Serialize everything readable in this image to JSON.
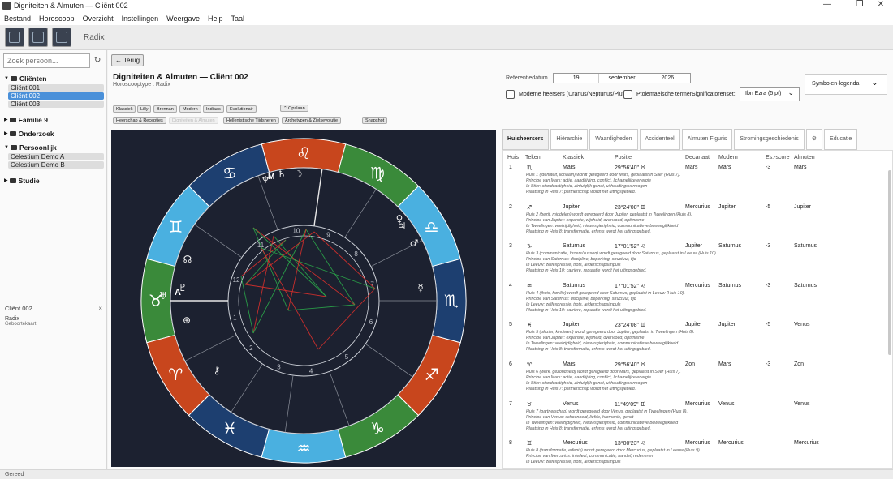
{
  "window": {
    "title": "Digniteiten & Almuten — Cliënt 002",
    "min": "—",
    "max": "❐",
    "close": "✕"
  },
  "menu": [
    "Bestand",
    "Horoscoop",
    "Overzicht",
    "Instellingen",
    "Weergave",
    "Help",
    "Taal"
  ],
  "toolbar": {
    "radix_label": "Radix"
  },
  "sidebar": {
    "search_placeholder": "Zoek persoon...",
    "refresh": "↻",
    "groups": [
      {
        "label": "Cliënten",
        "expanded": true,
        "items": [
          "Cliënt 001",
          "Cliënt 002",
          "Cliënt 003"
        ],
        "selected": 1
      },
      {
        "label": "Familie 9",
        "expanded": false,
        "items": []
      },
      {
        "label": "Onderzoek",
        "expanded": false,
        "items": []
      },
      {
        "label": "Persoonlijk",
        "expanded": true,
        "items": [
          "Celestium Demo A",
          "Celestium Demo B"
        ]
      },
      {
        "label": "Studie",
        "expanded": false,
        "items": []
      }
    ],
    "info": {
      "title": "Cliënt 002",
      "close": "×",
      "line1": "Radix",
      "line2": "Geboortekaart"
    }
  },
  "main": {
    "back": "← Terug",
    "title": "Digniteiten & Almuten — Cliënt 002",
    "subtitle": "Horoscooptype :  Radix",
    "ref_label": "Referentiedatum",
    "date": {
      "day": "19",
      "month": "september",
      "year": "2026"
    },
    "modern_label": "Moderne heersers (Uranus/Neptunus/Pluto)",
    "ptol_label": "Ptolemaeische termen",
    "sig_label": "Significatorenset:",
    "sig_value": "Ibn Ezra (5 pt)",
    "legend_label": "Symbolen-legenda",
    "chips_row1": [
      "Klassiek",
      "Lilly",
      "Brennan",
      "Modern",
      "Indiaas",
      "Evolutionair"
    ],
    "save": "⌃ Opslaan",
    "chips_row2": [
      "Heerschap & Recepties",
      "Digniteiten & Almuten",
      "Hellenistische Tijdsheren",
      "Archetypen & Zielsevolutie"
    ],
    "snapshot": "Snapshot"
  },
  "tabs": [
    "Huisheersers",
    "Hiërarchie",
    "Waardigheden",
    "Accidenteel",
    "Almuten Figuris",
    "Stromingsgeschiedenis",
    "⚙",
    "Educatie"
  ],
  "table": {
    "headers": [
      "Huis",
      "Teken",
      "Klassiek",
      "Positie",
      "Decanaat",
      "Modern",
      "Es.-score",
      "Almuten"
    ],
    "rows": [
      {
        "huis": "1",
        "teken": "♏",
        "klassiek": "Mars",
        "positie": "29°56'40\" ♉",
        "decanaat": "Mars",
        "modern": "Mars",
        "score": "-3",
        "almuten": "Mars",
        "desc": [
          "Huis 1 (identiteit, lichaam) wordt geregeerd door Mars, geplaatst in Stier (Huis 7).",
          "Principe van Mars: actie, aandrijving, conflict, lichamelijke energie",
          "In Stier: standvastigheid, zintuiglijk genot, uithoudingsvermogen",
          "Plaatsing in Huis 7: partnerschap wordt het uitingsgebied."
        ]
      },
      {
        "huis": "2",
        "teken": "♐",
        "klassiek": "Jupiter",
        "positie": "23°24'08\" ♊",
        "decanaat": "Mercurius",
        "modern": "Jupiter",
        "score": "-5",
        "almuten": "Jupiter",
        "desc": [
          "Huis 2 (bezit, middelen) wordt geregeerd door Jupiter, geplaatst in Tweelingen (Huis 8).",
          "Principe van Jupiter: expansie, wijsheid, overvloed, optimisme",
          "In Tweelingen: veelzijdigheid, nieuwsgierigheid, communicatieve beweeglijkheid",
          "Plaatsing in Huis 8: transformatie, erfenis wordt het uitingsgebied."
        ]
      },
      {
        "huis": "3",
        "teken": "♑",
        "klassiek": "Saturnus",
        "positie": "17°01'52\" ♌",
        "decanaat": "Jupiter",
        "modern": "Saturnus",
        "score": "-3",
        "almuten": "Saturnus",
        "desc": [
          "Huis 3 (communicatie, broers/zussen) wordt geregeerd door Saturnus, geplaatst in Leeuw (Huis 10).",
          "Principe van Saturnus: discipline, beperking, structuur, tijd",
          "In Leeuw: zelfexpressie, trots, leiderschapsimpuls",
          "Plaatsing in Huis 10: carrière, reputatie wordt het uitingsgebied."
        ]
      },
      {
        "huis": "4",
        "teken": "♒",
        "klassiek": "Saturnus",
        "positie": "17°01'52\" ♌",
        "decanaat": "Mercurius",
        "modern": "Saturnus",
        "score": "-3",
        "almuten": "Saturnus",
        "desc": [
          "Huis 4 (thuis, familie) wordt geregeerd door Saturnus, geplaatst in Leeuw (Huis 10).",
          "Principe van Saturnus: discipline, beperking, structuur, tijd",
          "In Leeuw: zelfexpressie, trots, leiderschapsimpuls",
          "Plaatsing in Huis 10: carrière, reputatie wordt het uitingsgebied."
        ]
      },
      {
        "huis": "5",
        "teken": "♓",
        "klassiek": "Jupiter",
        "positie": "23°24'08\" ♊",
        "decanaat": "Jupiter",
        "modern": "Jupiter",
        "score": "-5",
        "almuten": "Venus",
        "desc": [
          "Huis 5 (plezier, kinderen) wordt geregeerd door Jupiter, geplaatst in Tweelingen (Huis 8).",
          "Principe van Jupiter: expansie, wijsheid, overvloed, optimisme",
          "In Tweelingen: veelzijdigheid, nieuwsgierigheid, communicatieve beweeglijkheid",
          "Plaatsing in Huis 8: transformatie, erfenis wordt het uitingsgebied."
        ]
      },
      {
        "huis": "6",
        "teken": "♈",
        "klassiek": "Mars",
        "positie": "29°56'40\" ♉",
        "decanaat": "Zon",
        "modern": "Mars",
        "score": "-3",
        "almuten": "Zon",
        "desc": [
          "Huis 6 (werk, gezondheid) wordt geregeerd door Mars, geplaatst in Stier (Huis 7).",
          "Principe van Mars: actie, aandrijving, conflict, lichamelijke energie",
          "In Stier: standvastigheid, zintuiglijk genot, uithoudingsvermogen",
          "Plaatsing in Huis 7: partnerschap wordt het uitingsgebied."
        ]
      },
      {
        "huis": "7",
        "teken": "♉",
        "klassiek": "Venus",
        "positie": "11°49'09\" ♊",
        "decanaat": "Mercurius",
        "modern": "Venus",
        "score": "—",
        "almuten": "Venus",
        "desc": [
          "Huis 7 (partnerschap) wordt geregeerd door Venus, geplaatst in Tweelingen (Huis 8).",
          "Principe van Venus: schoonheid, liefde, harmonie, genot",
          "In Tweelingen: veelzijdigheid, nieuwsgierigheid, communicatieve beweeglijkheid",
          "Plaatsing in Huis 8: transformatie, erfenis wordt het uitingsgebied."
        ]
      },
      {
        "huis": "8",
        "teken": "♊",
        "klassiek": "Mercurius",
        "positie": "13°00'23\" ♌",
        "decanaat": "Mercurius",
        "modern": "Mercurius",
        "score": "—",
        "almuten": "Mercurius",
        "desc": [
          "Huis 8 (transformatie, erfenis) wordt geregeerd door Mercurius, geplaatst in Leeuw (Huis 9).",
          "Principe van Mercurius: intellect, communicatie, handel, redeneren",
          "In Leeuw: zelfexpressie, trots, leiderschapsimpuls"
        ]
      }
    ]
  },
  "wheel": {
    "house_numbers": [
      "1",
      "2",
      "3",
      "4",
      "5",
      "6",
      "7",
      "8",
      "9",
      "10",
      "11",
      "12"
    ],
    "asc_label": "A",
    "mc_label": "M",
    "signs": [
      "♌",
      "♋",
      "♊",
      "♉",
      "♈",
      "♓",
      "♒",
      "♑",
      "♐",
      "♏",
      "♎",
      "♍"
    ],
    "sign_colors": [
      "#c8461d",
      "#1d3f70",
      "#4ab0e0",
      "#3a8a3a",
      "#c8461d",
      "#1d3f70",
      "#4ab0e0",
      "#3a8a3a",
      "#c8461d",
      "#1d3f70",
      "#4ab0e0",
      "#3a8a3a"
    ],
    "planets": [
      "♆",
      "♄",
      "☽",
      "♀",
      "♂",
      "♃",
      "☿",
      "♅",
      "♇",
      "☊",
      "⊕",
      "⚷"
    ]
  },
  "status": "Gereed"
}
